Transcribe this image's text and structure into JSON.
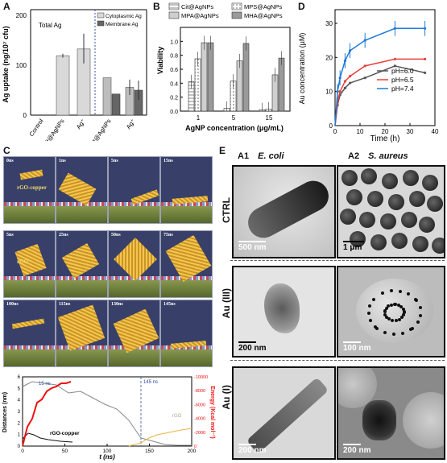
{
  "panels": {
    "A": "A",
    "B": "B",
    "C": "C",
    "D": "D",
    "E": "E"
  },
  "chart_data": [
    {
      "panel": "A",
      "type": "bar",
      "ylabel": "Ag uptake (ng/10⁷ cfu)",
      "yticks": [
        "0",
        "100",
        "200"
      ],
      "ylim": [
        0,
        220
      ],
      "title_left": "Total Ag",
      "legend": [
        "Cytoplasmic Ag",
        "Membrane Ag"
      ],
      "categories": [
        "Control",
        "Cit@AgNPs",
        "Ag⁺",
        "Cit@AgNPs",
        "Ag⁺"
      ],
      "total": [
        0,
        124,
        138
      ],
      "cytoplasmic": [
        78,
        58
      ],
      "membrane": [
        44,
        52
      ],
      "colors": {
        "total": "#d9d9d9",
        "cyto": "#bdbdbd",
        "memb": "#666666"
      }
    },
    {
      "panel": "B",
      "type": "bar",
      "ylabel": "Viability",
      "xlabel": "AgNP concentration (μg/mL)",
      "yticks": [
        "0.0",
        "0.2",
        "0.4",
        "0.6",
        "0.8",
        "1.0"
      ],
      "ylim": [
        0,
        1.2
      ],
      "categories": [
        "1",
        "5",
        "15"
      ],
      "series": [
        {
          "name": "Cit@AgNPs",
          "values": [
            0.42,
            0.04,
            0.02
          ]
        },
        {
          "name": "MPS@AgNPs",
          "values": [
            0.75,
            0.43,
            0.03
          ]
        },
        {
          "name": "MPA@AgNPs",
          "values": [
            0.98,
            0.72,
            0.52
          ]
        },
        {
          "name": "MHA@AgNPs",
          "values": [
            0.98,
            0.97,
            0.76
          ]
        }
      ]
    },
    {
      "panel": "D",
      "type": "line",
      "xlabel": "Time (h)",
      "ylabel": "Au concentration (μM)",
      "xticks": [
        "0",
        "10",
        "20",
        "30",
        "40"
      ],
      "yticks": [
        "0",
        "10",
        "20",
        "30"
      ],
      "xlim": [
        0,
        40
      ],
      "ylim": [
        0,
        34
      ],
      "x": [
        0,
        1,
        2,
        4,
        6,
        12,
        24,
        36
      ],
      "series": [
        {
          "name": "pH=6.0",
          "color": "#555555",
          "values": [
            0,
            6,
            9,
            11,
            12.5,
            14,
            17.5,
            15.5
          ]
        },
        {
          "name": "pH=6.5",
          "color": "#e8413c",
          "values": [
            0,
            7,
            10,
            13,
            14.5,
            17.5,
            19.5,
            19.5
          ]
        },
        {
          "name": "pH=7.4",
          "color": "#1f7bd8",
          "values": [
            0,
            10,
            14,
            19,
            22,
            25,
            28.5,
            28.5
          ]
        }
      ]
    },
    {
      "panel": "C-plot",
      "type": "line",
      "xlabel": "t (ns)",
      "ylabel_left": "Distances (nm)",
      "ylabel_right": "Energy (Kcal mol⁻¹)",
      "xticks": [
        "0",
        "50",
        "100",
        "150",
        "200"
      ],
      "yticks_left": [
        "0",
        "1",
        "2",
        "3",
        "4",
        "5",
        "6"
      ],
      "yticks_right": [
        "0",
        "-2000",
        "-4000",
        "-6000",
        "-8000",
        "-10000"
      ],
      "annotations": [
        "15 ns",
        "145 ns",
        "rGO-copper",
        "rGO"
      ]
    }
  ],
  "sim": {
    "rows": [
      [
        "0ns",
        "1ns",
        "5ns",
        "15ns"
      ],
      [
        "5ns",
        "25ns",
        "50ns",
        "75ns"
      ],
      [
        "100ns",
        "115ns",
        "130ns",
        "145ns"
      ]
    ],
    "tag_copper": "rGO-copper",
    "tag_rgo": "rGO"
  },
  "tem": {
    "col1": "A1",
    "col1_sub": "E. coli",
    "col2": "A2",
    "col2_sub": "S. aureus",
    "rows": [
      "CTRL",
      "Au (III)",
      "Au (I)"
    ],
    "scales": [
      [
        "500 nm",
        "1 μm"
      ],
      [
        "200 nm",
        "100 nm"
      ],
      [
        "200 nm",
        "200 nm"
      ]
    ]
  }
}
